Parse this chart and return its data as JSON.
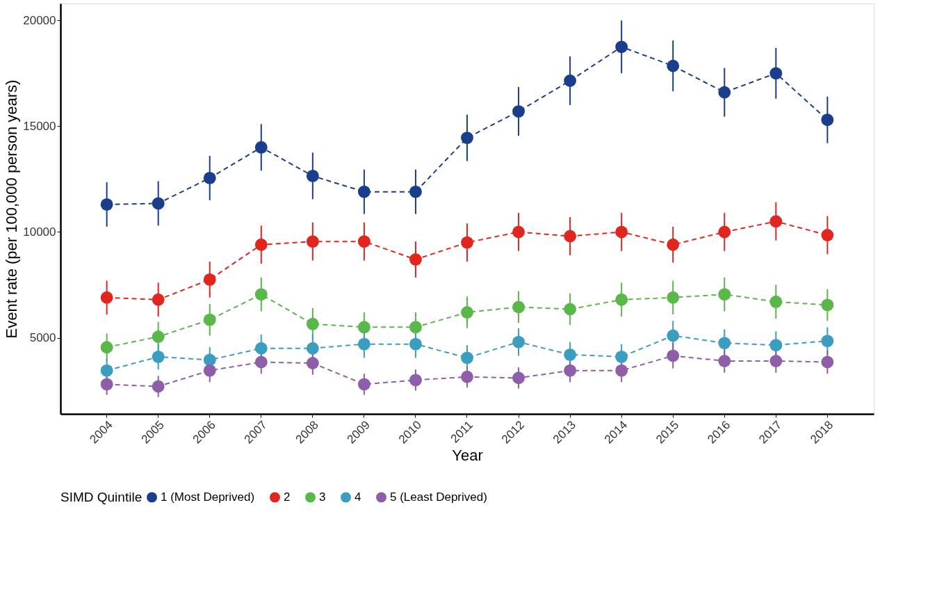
{
  "chart_data": {
    "type": "line",
    "xlabel": "Year",
    "ylabel": "Event rate (per 100,000 person years)",
    "legend_title": "SIMD Quintile",
    "categories": [
      "2004",
      "2005",
      "2006",
      "2007",
      "2008",
      "2009",
      "2010",
      "2011",
      "2012",
      "2013",
      "2014",
      "2015",
      "2016",
      "2017",
      "2018"
    ],
    "ylim": [
      1400,
      20800
    ],
    "yticks": [
      5000,
      10000,
      15000,
      20000
    ],
    "grid": false,
    "legend": "bottom",
    "marker": "circle",
    "line_style": "dashed",
    "series": [
      {
        "name": "1 (Most Deprived)",
        "color": "#1a3e8c",
        "values": [
          11300,
          11350,
          12550,
          14000,
          12650,
          11900,
          11900,
          14450,
          15700,
          17150,
          18750,
          17850,
          16600,
          17500,
          15300
        ],
        "errors": [
          1050,
          1050,
          1050,
          1100,
          1100,
          1050,
          1050,
          1100,
          1150,
          1150,
          1250,
          1200,
          1150,
          1200,
          1100
        ]
      },
      {
        "name": "2",
        "color": "#e0261f",
        "values": [
          6900,
          6800,
          7750,
          9400,
          9550,
          9550,
          8700,
          9500,
          10000,
          9800,
          10000,
          9400,
          10000,
          10500,
          9850
        ],
        "errors": [
          800,
          800,
          850,
          900,
          900,
          900,
          850,
          900,
          900,
          900,
          900,
          850,
          900,
          900,
          900
        ]
      },
      {
        "name": "3",
        "color": "#5ab74a",
        "values": [
          4550,
          5050,
          5850,
          7050,
          5650,
          5500,
          5500,
          6200,
          6450,
          6350,
          6800,
          6900,
          7050,
          6700,
          6550
        ],
        "errors": [
          650,
          700,
          750,
          800,
          750,
          700,
          700,
          750,
          750,
          750,
          800,
          800,
          800,
          800,
          750
        ]
      },
      {
        "name": "4",
        "color": "#3b9dc0",
        "values": [
          3450,
          4100,
          3950,
          4500,
          4500,
          4700,
          4700,
          4050,
          4800,
          4200,
          4100,
          5100,
          4750,
          4650,
          4850
        ],
        "errors": [
          550,
          600,
          600,
          650,
          650,
          650,
          650,
          600,
          650,
          600,
          600,
          700,
          650,
          650,
          650
        ]
      },
      {
        "name": "5 (Least Deprived)",
        "color": "#8e5ea8",
        "values": [
          2800,
          2700,
          3450,
          3850,
          3800,
          2800,
          3000,
          3150,
          3100,
          3450,
          3450,
          4150,
          3900,
          3900,
          3850
        ],
        "errors": [
          500,
          500,
          550,
          550,
          550,
          500,
          500,
          500,
          500,
          550,
          550,
          600,
          550,
          550,
          550
        ]
      }
    ]
  }
}
